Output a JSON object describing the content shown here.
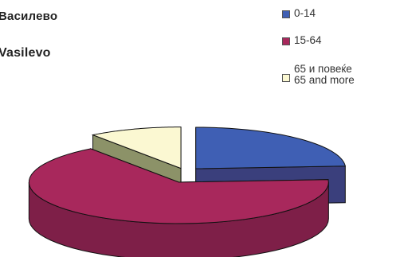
{
  "header": {
    "title_cyrillic": "Василево",
    "title_latin": "Vasilevo"
  },
  "legend": {
    "placement": "top-right",
    "items": [
      {
        "label_lines": [
          "0-14"
        ]
      },
      {
        "label_lines": [
          "15-64"
        ]
      },
      {
        "label_lines": [
          "65 и повеќе",
          "65 and more"
        ]
      }
    ]
  },
  "chart_data": {
    "type": "pie",
    "style": "3d-exploded",
    "title": "Василево / Vasilevo",
    "categories": [
      "0-14",
      "15-64",
      "65 и повеќе / 65 and more"
    ],
    "values": [
      0.24,
      0.66,
      0.1
    ],
    "values_unit": "share of population (estimated from slice angles)",
    "colors": {
      "top": [
        "#3f5fb4",
        "#a8285c",
        "#fbf8d2"
      ],
      "side": [
        "#3a3f7c",
        "#7e1f48",
        "#8c9268"
      ],
      "legend_swatch": [
        "#3f5fb4",
        "#a8285c",
        "#fbf8d2"
      ]
    }
  }
}
